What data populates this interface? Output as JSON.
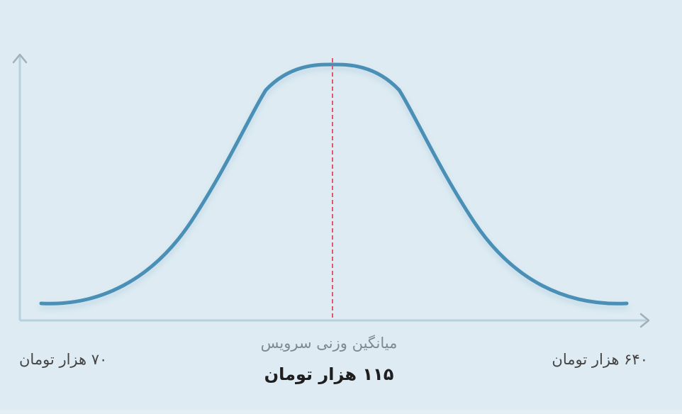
{
  "chart_data": {
    "type": "line",
    "curve": "bell",
    "series": [
      {
        "color": "#4a8fb6",
        "x": [
          0,
          1,
          2,
          3,
          4,
          5,
          6,
          7,
          8,
          9,
          10
        ],
        "y": [
          0.0,
          0.03,
          0.12,
          0.33,
          0.68,
          0.97,
          1.0,
          0.68,
          0.33,
          0.12,
          0.0
        ]
      }
    ],
    "mean_marker": {
      "x": 5.0,
      "color": "#e5566c",
      "style": "dashed"
    },
    "x_range_labels": {
      "min": "۷۰ هزار تومان",
      "max": "۶۴۰ هزار تومان"
    },
    "mean_caption": "میانگین وزنی سرویس",
    "mean_value": "۱۱۵ هزار تومان",
    "axis_color": "#b6d0df",
    "grid": false
  }
}
